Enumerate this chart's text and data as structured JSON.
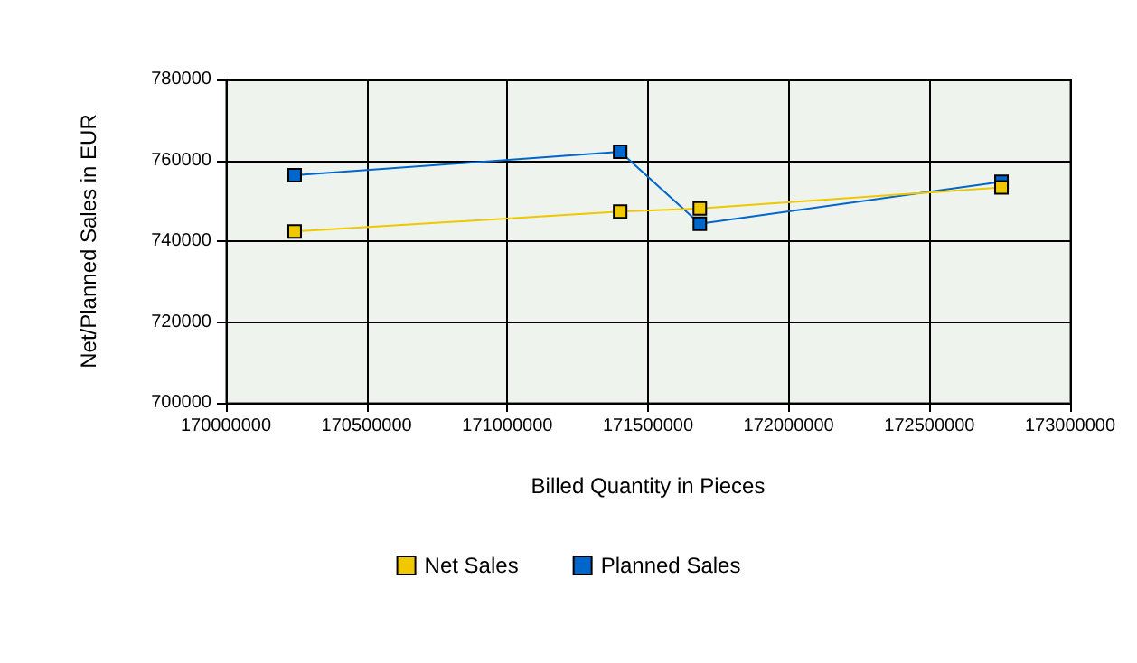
{
  "chart_data": {
    "type": "line",
    "xlabel": "Billed Quantity in Pieces",
    "ylabel": "Net/Planned Sales in EUR",
    "x": [
      170244000,
      171401000,
      171684000,
      172756000
    ],
    "series": [
      {
        "name": "Net Sales",
        "color": "#f0c800",
        "values": [
          742400,
          747300,
          748100,
          753300
        ]
      },
      {
        "name": "Planned Sales",
        "color": "#0066cc",
        "values": [
          756300,
          762100,
          744300,
          754700
        ]
      }
    ],
    "xlim": [
      170000000,
      173000000
    ],
    "xticks": [
      170000000,
      170500000,
      171000000,
      171500000,
      172000000,
      172500000,
      173000000
    ],
    "ylim": [
      700000,
      780000
    ],
    "yticks": [
      700000,
      720000,
      740000,
      760000,
      780000
    ],
    "grid": true,
    "legend": "bottom",
    "marker": "square"
  }
}
